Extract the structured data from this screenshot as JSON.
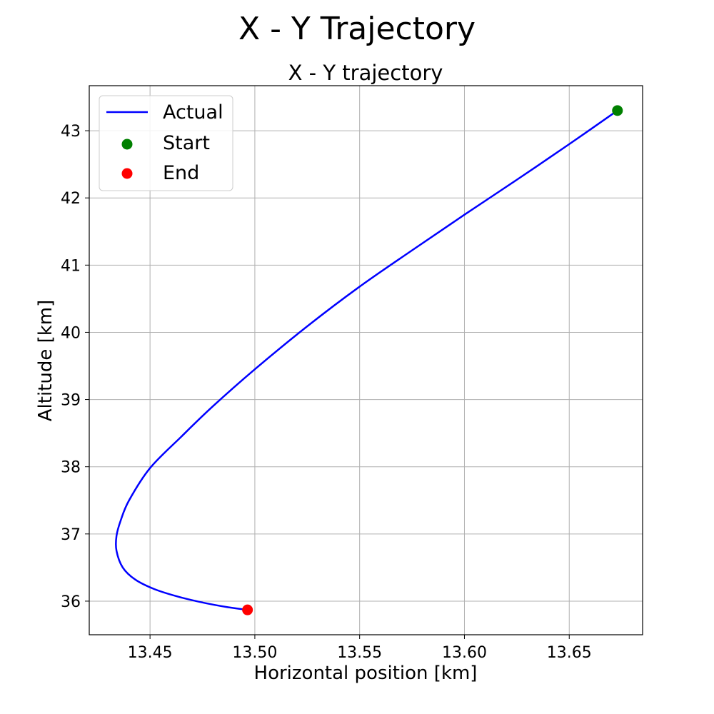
{
  "figure": {
    "suptitle": "X - Y Trajectory"
  },
  "chart_data": {
    "type": "line",
    "title": "X - Y trajectory",
    "xlabel": "Horizontal position [km]",
    "ylabel": "Altitude [km]",
    "xlim": [
      13.421,
      13.685
    ],
    "ylim": [
      35.5,
      43.67
    ],
    "xticks": [
      13.45,
      13.5,
      13.55,
      13.6,
      13.65
    ],
    "xtick_labels": [
      "13.45",
      "13.50",
      "13.55",
      "13.60",
      "13.65"
    ],
    "yticks": [
      36,
      37,
      38,
      39,
      40,
      41,
      42,
      43
    ],
    "ytick_labels": [
      "36",
      "37",
      "38",
      "39",
      "40",
      "41",
      "42",
      "43"
    ],
    "grid": true,
    "legend_position": "upper-left",
    "series": [
      {
        "name": "Actual",
        "kind": "line",
        "color": "#0000ff",
        "x": [
          13.673,
          13.65,
          13.625,
          13.6,
          13.575,
          13.55,
          13.525,
          13.5,
          13.48,
          13.465,
          13.45,
          13.44,
          13.436,
          13.434,
          13.434,
          13.437,
          13.443,
          13.452,
          13.463,
          13.475,
          13.487,
          13.4965
        ],
        "y": [
          43.3,
          42.8,
          42.27,
          41.75,
          41.22,
          40.68,
          40.09,
          39.45,
          38.9,
          38.45,
          37.98,
          37.5,
          37.2,
          36.97,
          36.75,
          36.5,
          36.32,
          36.18,
          36.07,
          35.98,
          35.91,
          35.87
        ]
      },
      {
        "name": "Start",
        "kind": "marker",
        "color": "#008000",
        "x": [
          13.673
        ],
        "y": [
          43.3
        ]
      },
      {
        "name": "End",
        "kind": "marker",
        "color": "#ff0000",
        "x": [
          13.4965
        ],
        "y": [
          35.87
        ]
      }
    ]
  }
}
